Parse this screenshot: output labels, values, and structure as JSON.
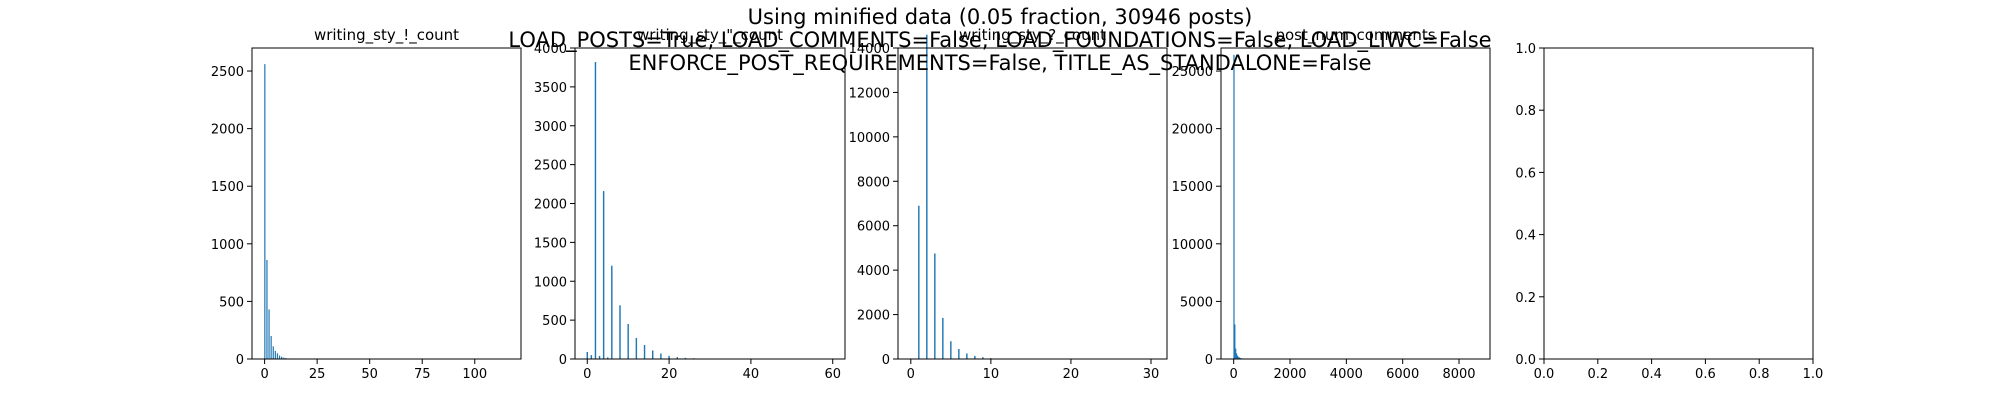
{
  "figure": {
    "suptitle_lines": [
      "Using minified data (0.05 fraction, 30946 posts)",
      "LOAD_POSTS=True, LOAD_COMMENTS=False, LOAD_FOUNDATIONS=False, LOAD_LIWC=False",
      "ENFORCE_POST_REQUIREMENTS=False, TITLE_AS_STANDALONE=False"
    ],
    "bar_color": "#1f77b4"
  },
  "chart_data": [
    {
      "type": "bar",
      "title": "writing_sty_!_count",
      "xlabel": "",
      "ylabel": "",
      "xlim": [
        -6,
        122
      ],
      "ylim": [
        0,
        2700
      ],
      "xticks": [
        0,
        25,
        50,
        75,
        100
      ],
      "yticks": [
        0,
        500,
        1000,
        1500,
        2000,
        2500
      ],
      "bin_width": 0.35,
      "x": [
        0,
        1,
        2,
        3,
        4,
        5,
        6,
        7,
        8,
        9,
        10,
        12,
        15
      ],
      "values": [
        2560,
        860,
        430,
        200,
        110,
        70,
        50,
        30,
        20,
        12,
        8,
        5,
        3
      ]
    },
    {
      "type": "bar",
      "title": "writing_sty_\"_count",
      "xlabel": "",
      "ylabel": "",
      "xlim": [
        -3,
        63
      ],
      "ylim": [
        0,
        4000
      ],
      "xticks": [
        0,
        20,
        40,
        60
      ],
      "yticks": [
        0,
        500,
        1000,
        1500,
        2000,
        2500,
        3000,
        3500,
        4000
      ],
      "bin_width": 0.35,
      "x": [
        0,
        1,
        2,
        3,
        4,
        5,
        6,
        8,
        10,
        12,
        14,
        16,
        18,
        20,
        22,
        24,
        26,
        28
      ],
      "values": [
        90,
        50,
        3820,
        40,
        2160,
        20,
        1200,
        690,
        450,
        270,
        180,
        110,
        70,
        40,
        25,
        15,
        10,
        5
      ]
    },
    {
      "type": "bar",
      "title": "writing_sty_?_count",
      "xlabel": "",
      "ylabel": "",
      "xlim": [
        -1.6,
        32
      ],
      "ylim": [
        0,
        14000
      ],
      "xticks": [
        0,
        10,
        20,
        30
      ],
      "yticks": [
        0,
        2000,
        4000,
        6000,
        8000,
        10000,
        12000,
        14000
      ],
      "bin_width": 0.18,
      "x": [
        0,
        1,
        2,
        3,
        4,
        5,
        6,
        7,
        8,
        9,
        10
      ],
      "values": [
        0,
        6900,
        14600,
        4750,
        1850,
        800,
        450,
        250,
        140,
        80,
        40
      ]
    },
    {
      "type": "bar",
      "title": "post_num_comments",
      "xlabel": "",
      "ylabel": "",
      "xlim": [
        -450,
        9100
      ],
      "ylim": [
        0,
        27000
      ],
      "xticks": [
        0,
        2000,
        4000,
        6000,
        8000
      ],
      "yticks": [
        0,
        5000,
        10000,
        15000,
        20000,
        25000
      ],
      "bin_width": 20,
      "x": [
        0,
        30,
        60,
        90,
        120,
        150,
        180,
        210,
        240,
        300,
        400,
        500
      ],
      "values": [
        26400,
        3000,
        900,
        500,
        300,
        200,
        150,
        100,
        80,
        50,
        30,
        15
      ]
    },
    {
      "type": "bar",
      "title": "",
      "xlabel": "",
      "ylabel": "",
      "xlim": [
        0,
        1
      ],
      "ylim": [
        0,
        1
      ],
      "xticks": [
        0.0,
        0.2,
        0.4,
        0.6,
        0.8,
        1.0
      ],
      "yticks": [
        0.0,
        0.2,
        0.4,
        0.6,
        0.8,
        1.0
      ],
      "x": [],
      "values": []
    }
  ]
}
